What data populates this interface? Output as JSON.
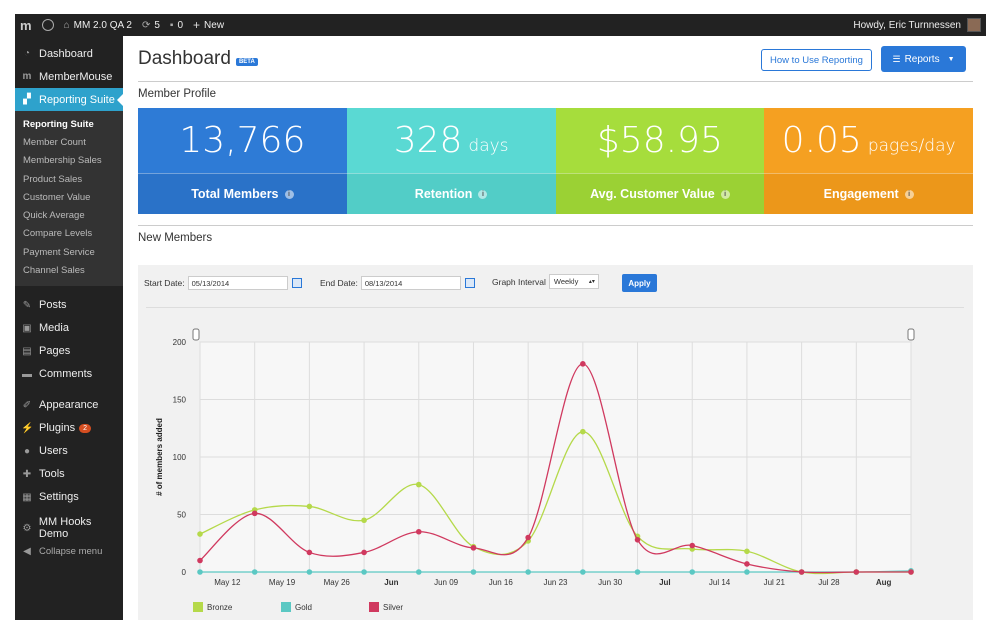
{
  "admin_bar": {
    "logo": "m",
    "site_name": "MM 2.0 QA 2",
    "updates_count": "5",
    "comments_count": "0",
    "new_label": "New",
    "howdy": "Howdy, Eric Turnnessen"
  },
  "sidebar": {
    "items_top": [
      {
        "label": "Dashboard",
        "icon": "dashboard-icon"
      },
      {
        "label": "MemberMouse",
        "icon": "membermouse-icon"
      },
      {
        "label": "Reporting Suite",
        "icon": "chart-icon",
        "active": true
      }
    ],
    "submenu": [
      "Reporting Suite",
      "Member Count",
      "Membership Sales",
      "Product Sales",
      "Customer Value",
      "Quick Average",
      "Compare Levels",
      "Payment Service",
      "Channel Sales"
    ],
    "items_mid": [
      {
        "label": "Posts",
        "icon": "pin-icon"
      },
      {
        "label": "Media",
        "icon": "media-icon"
      },
      {
        "label": "Pages",
        "icon": "pages-icon"
      },
      {
        "label": "Comments",
        "icon": "comment-icon"
      }
    ],
    "items_low": [
      {
        "label": "Appearance",
        "icon": "brush-icon"
      },
      {
        "label": "Plugins",
        "icon": "plugin-icon",
        "badge": "2"
      },
      {
        "label": "Users",
        "icon": "user-icon"
      },
      {
        "label": "Tools",
        "icon": "wrench-icon"
      },
      {
        "label": "Settings",
        "icon": "settings-icon"
      }
    ],
    "items_end": [
      {
        "label": "MM Hooks Demo",
        "icon": "gear-icon"
      }
    ],
    "collapse_label": "Collapse menu"
  },
  "header": {
    "title": "Dashboard",
    "beta": "BETA",
    "how_to_label": "How to Use Reporting",
    "reports_label": "Reports"
  },
  "member_profile": {
    "title": "Member Profile",
    "stats": [
      {
        "value": "13,766",
        "unit": "",
        "label": "Total Members",
        "color": "#2e7bd6"
      },
      {
        "value": "328",
        "unit": "days",
        "label": "Retention",
        "color": "#5ad9d3"
      },
      {
        "value": "$58.95",
        "unit": "",
        "label": "Avg. Customer Value",
        "color": "#a6dd3c"
      },
      {
        "value": "0.05",
        "unit": "pages/day",
        "label": "Engagement",
        "color": "#f5a021"
      }
    ]
  },
  "new_members": {
    "title": "New Members",
    "start_label": "Start Date:",
    "start_value": "05/13/2014",
    "end_label": "End Date:",
    "end_value": "08/13/2014",
    "interval_label": "Graph Interval",
    "interval_value": "Weekly",
    "apply_label": "Apply"
  },
  "chart_data": {
    "type": "line",
    "ylabel": "# of members added",
    "ylim": [
      0,
      200
    ],
    "yticks": [
      0,
      50,
      100,
      150,
      200
    ],
    "x_ticks": [
      {
        "label": "May 12",
        "bold": false
      },
      {
        "label": "May 19",
        "bold": false
      },
      {
        "label": "May 26",
        "bold": false
      },
      {
        "label": "Jun",
        "bold": true
      },
      {
        "label": "Jun 09",
        "bold": false
      },
      {
        "label": "Jun 16",
        "bold": false
      },
      {
        "label": "Jun 23",
        "bold": false
      },
      {
        "label": "Jun 30",
        "bold": false
      },
      {
        "label": "Jul",
        "bold": true
      },
      {
        "label": "Jul 14",
        "bold": false
      },
      {
        "label": "Jul 21",
        "bold": false
      },
      {
        "label": "Jul 28",
        "bold": false
      },
      {
        "label": "Aug",
        "bold": true
      }
    ],
    "series": [
      {
        "name": "Bronze",
        "color": "#b5d94a",
        "points": [
          [
            0,
            33
          ],
          [
            1,
            54
          ],
          [
            2,
            57
          ],
          [
            3,
            45
          ],
          [
            4,
            76
          ],
          [
            5,
            22
          ],
          [
            6,
            27
          ],
          [
            7,
            122
          ],
          [
            8,
            31
          ],
          [
            9,
            20
          ],
          [
            10,
            18
          ],
          [
            11,
            0
          ],
          [
            12,
            0
          ],
          [
            13,
            0
          ]
        ]
      },
      {
        "name": "Gold",
        "color": "#5bc8c3",
        "points": [
          [
            0,
            0
          ],
          [
            1,
            0
          ],
          [
            2,
            0
          ],
          [
            3,
            0
          ],
          [
            4,
            0
          ],
          [
            5,
            0
          ],
          [
            6,
            0
          ],
          [
            7,
            0
          ],
          [
            8,
            0
          ],
          [
            9,
            0
          ],
          [
            10,
            0
          ],
          [
            11,
            0
          ],
          [
            12,
            0
          ],
          [
            13,
            1
          ]
        ]
      },
      {
        "name": "Silver",
        "color": "#d0395f",
        "points": [
          [
            0,
            10
          ],
          [
            1,
            51
          ],
          [
            2,
            17
          ],
          [
            3,
            17
          ],
          [
            4,
            35
          ],
          [
            5,
            21
          ],
          [
            6,
            30
          ],
          [
            7,
            181
          ],
          [
            8,
            28
          ],
          [
            9,
            23
          ],
          [
            10,
            7
          ],
          [
            11,
            0
          ],
          [
            12,
            0
          ],
          [
            13,
            0
          ]
        ]
      }
    ]
  }
}
